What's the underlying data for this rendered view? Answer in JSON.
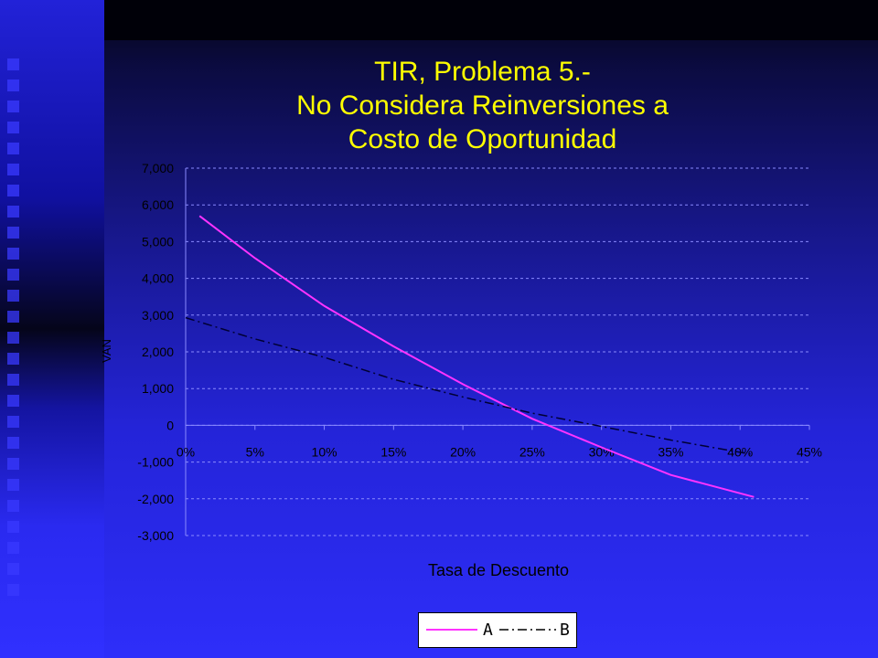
{
  "title_lines": [
    "TIR, Problema 5.-",
    "No Considera Reinversiones a",
    "Costo de Oportunidad"
  ],
  "chart_data": {
    "type": "line",
    "xlabel": "Tasa de Descuento",
    "ylabel": "VAN",
    "xlim": [
      0,
      0.45
    ],
    "ylim": [
      -3000,
      7000
    ],
    "xticks": [
      0,
      0.05,
      0.1,
      0.15,
      0.2,
      0.25,
      0.3,
      0.35,
      0.4,
      0.45
    ],
    "xtick_labels": [
      "0%",
      "5%",
      "10%",
      "15%",
      "20%",
      "25%",
      "30%",
      "35%",
      "40%",
      "45%"
    ],
    "yticks": [
      7000,
      6000,
      5000,
      4000,
      3000,
      2000,
      1000,
      0,
      -1000,
      -2000,
      -3000
    ],
    "ytick_labels": [
      "7,000",
      "6,000",
      "5,000",
      "4,000",
      "3,000",
      "2,000",
      "1,000",
      "0",
      "-1,000",
      "-2,000",
      "-3,000"
    ],
    "grid": true,
    "legend_position": "bottom",
    "series": [
      {
        "name": "A",
        "color": "#ff33ff",
        "style": "solid",
        "x": [
          0.01,
          0.05,
          0.1,
          0.15,
          0.2,
          0.25,
          0.3,
          0.35,
          0.41
        ],
        "y": [
          5700,
          4550,
          3250,
          2150,
          1120,
          180,
          -600,
          -1350,
          -1950
        ]
      },
      {
        "name": "B",
        "color": "#000033",
        "style": "dashdot",
        "x": [
          0.0,
          0.05,
          0.1,
          0.15,
          0.2,
          0.25,
          0.3,
          0.35,
          0.41
        ],
        "y": [
          2930,
          2350,
          1850,
          1250,
          770,
          330,
          -30,
          -400,
          -800
        ]
      }
    ]
  },
  "legend": {
    "a_label": "A",
    "b_label": "B"
  }
}
